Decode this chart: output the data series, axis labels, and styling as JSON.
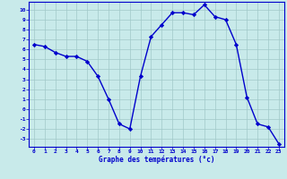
{
  "hours": [
    0,
    1,
    2,
    3,
    4,
    5,
    6,
    7,
    8,
    9,
    10,
    11,
    12,
    13,
    14,
    15,
    16,
    17,
    18,
    19,
    20,
    21,
    22,
    23
  ],
  "temps": [
    6.5,
    6.3,
    5.7,
    5.3,
    5.3,
    4.8,
    3.3,
    1.0,
    -1.5,
    -2.0,
    3.3,
    7.3,
    8.5,
    9.7,
    9.7,
    9.5,
    10.5,
    9.3,
    9.0,
    6.5,
    1.2,
    -1.5,
    -1.8,
    -3.5
  ],
  "line_color": "#0000cc",
  "marker": "D",
  "markersize": 2.2,
  "linewidth": 1.0,
  "xlabel": "Graphe des températures (°c)",
  "bg_color": "#c8eaea",
  "grid_color": "#a0c8c8",
  "ylim": [
    -3.8,
    10.8
  ],
  "yticks": [
    10,
    9,
    8,
    7,
    6,
    5,
    4,
    3,
    2,
    1,
    0,
    -1,
    -2,
    -3
  ],
  "xlim": [
    -0.5,
    23.5
  ],
  "xticks": [
    0,
    1,
    2,
    3,
    4,
    5,
    6,
    7,
    8,
    9,
    10,
    11,
    12,
    13,
    14,
    15,
    16,
    17,
    18,
    19,
    20,
    21,
    22,
    23
  ],
  "axis_label_color": "#0000cc",
  "spine_color": "#0000cc",
  "bottom_bar_color": "#0000aa"
}
